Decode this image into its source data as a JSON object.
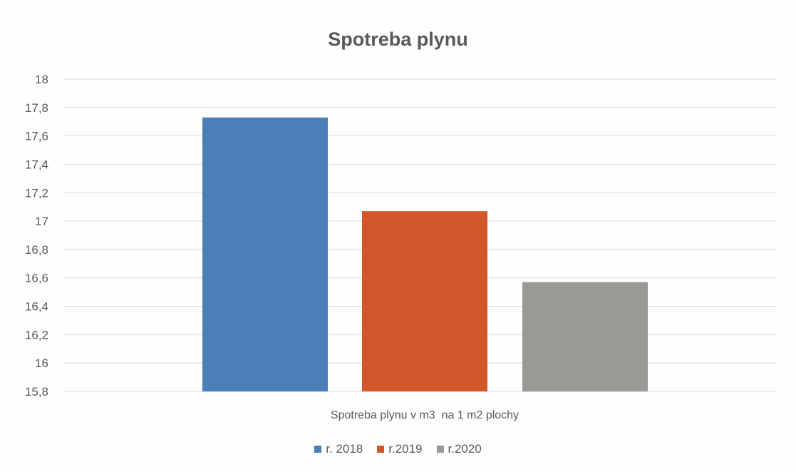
{
  "chart_data": {
    "type": "bar",
    "title": "Spotreba plynu",
    "categories": [
      "Spotreba plynu v m3  na 1 m2 plochy"
    ],
    "series": [
      {
        "name": "r. 2018",
        "values": [
          17.73
        ],
        "color": "#4a80b7"
      },
      {
        "name": "r.2019",
        "values": [
          17.07
        ],
        "color": "#d2582b"
      },
      {
        "name": "r.2020",
        "values": [
          16.57
        ],
        "color": "#9a9a95"
      }
    ],
    "ylim": [
      15.8,
      18
    ],
    "yticks": [
      "18",
      "17,8",
      "17,6",
      "17,4",
      "17,2",
      "17",
      "16,8",
      "16,6",
      "16,4",
      "16,2",
      "16",
      "15,8"
    ],
    "ytick_values": [
      18,
      17.8,
      17.6,
      17.4,
      17.2,
      17,
      16.8,
      16.6,
      16.4,
      16.2,
      16,
      15.8
    ],
    "grid": true,
    "legend_position": "bottom"
  }
}
